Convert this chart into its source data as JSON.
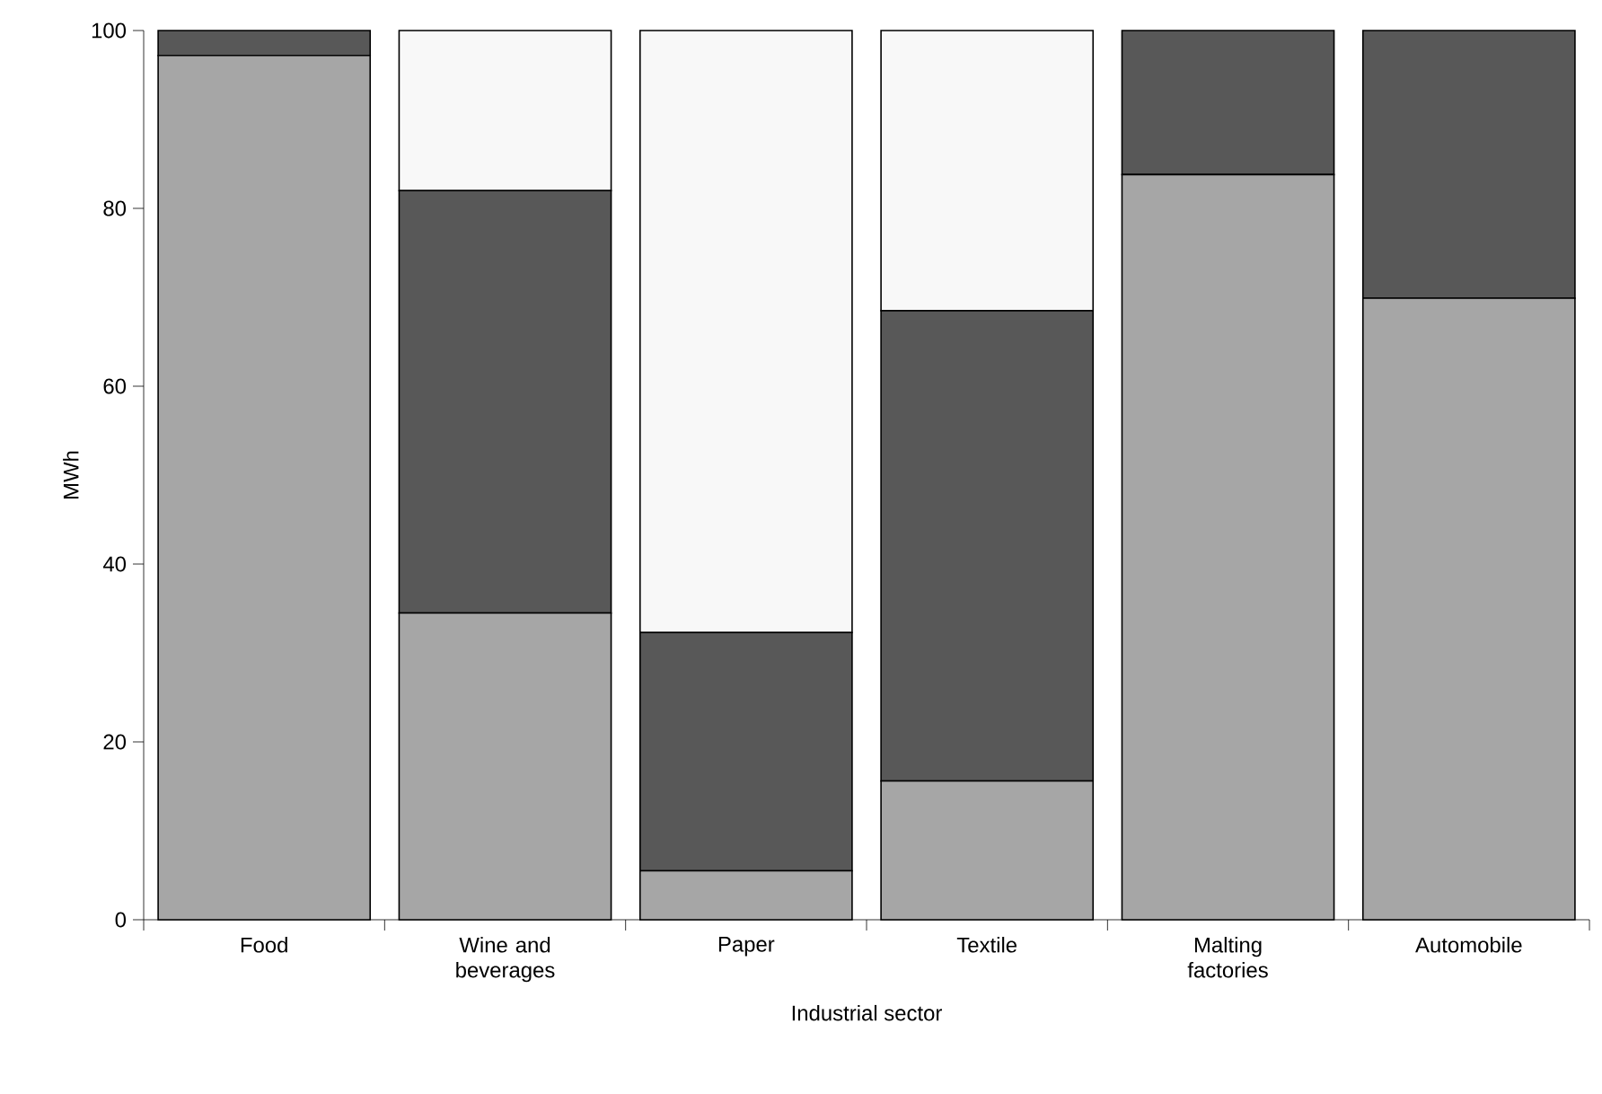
{
  "chart_data": {
    "type": "bar",
    "stacked": true,
    "xlabel": "Industrial sector",
    "ylabel": "MWh",
    "categories": [
      "Food",
      "Wine and beverages",
      "Paper",
      "Textile",
      "Malting factories",
      "Automobile"
    ],
    "series": [
      {
        "color": "#a6a6a6",
        "values": [
          97.2,
          34.5,
          5.5,
          15.6,
          83.8,
          69.9
        ]
      },
      {
        "color": "#585858",
        "values": [
          2.8,
          47.5,
          26.8,
          52.9,
          16.2,
          30.1
        ]
      },
      {
        "color": "#f8f8f8",
        "values": [
          null,
          18,
          67.7,
          31.5,
          null,
          null
        ]
      }
    ],
    "ylim": [
      0,
      100
    ],
    "yticks": [
      0,
      20,
      40,
      60,
      80,
      100
    ]
  }
}
